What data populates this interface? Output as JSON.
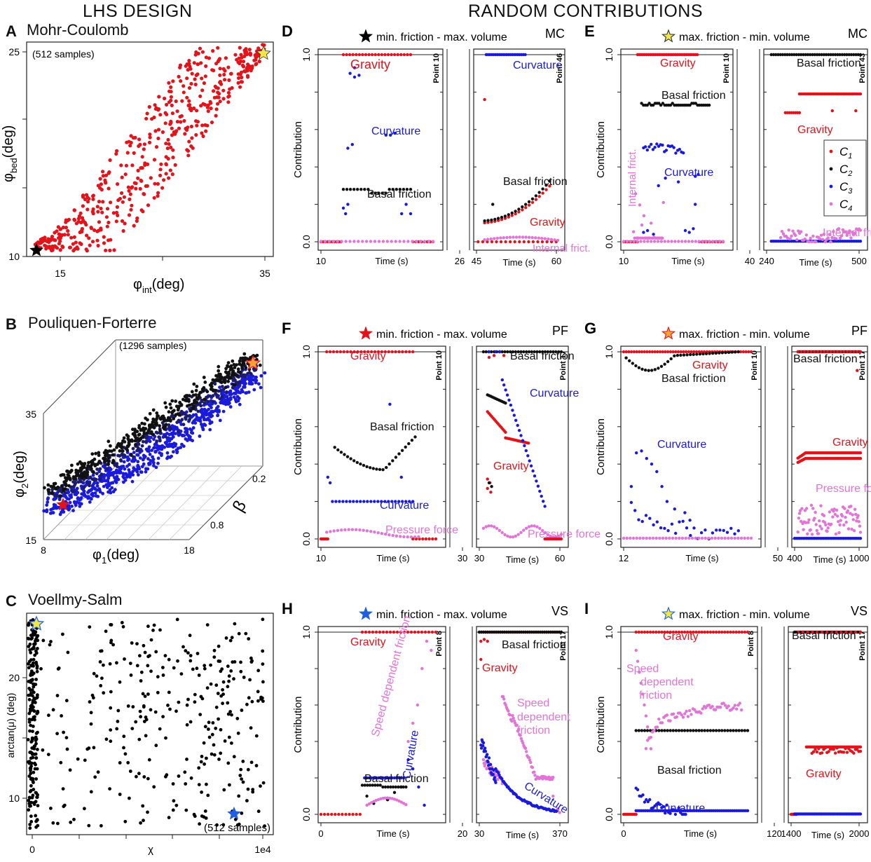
{
  "headers": {
    "left": "LHS DESIGN",
    "right": "RANDOM CONTRIBUTIONS"
  },
  "colors": {
    "gravity": "#e3131b",
    "basal": "#111111",
    "curvature": "#1a1adb",
    "pink": "#e274d8",
    "star_black": "#000000",
    "star_yellow": "#f0e54a",
    "star_red": "#e3131b",
    "star_blue": "#1f5fe0"
  },
  "panelA": {
    "letter": "A",
    "title": "Mohr-Coulomb",
    "samples": "(512 samples)",
    "xlabel": "φint(deg)",
    "xlabel_main": "φ",
    "xlabel_sub": "int",
    "xlabel_unit": "(deg)",
    "ylabel_main": "φ",
    "ylabel_sub": "bed",
    "ylabel_unit": "(deg)",
    "xticks": [
      "15",
      "35"
    ],
    "yticks": [
      "10",
      "25"
    ]
  },
  "panelB": {
    "letter": "B",
    "title": "Pouliquen-Forterre",
    "samples": "(1296 samples)",
    "xlabel_main": "φ",
    "xlabel_sub": "1",
    "xlabel_unit": "(deg)",
    "ylabel_main": "φ",
    "ylabel_sub": "2",
    "ylabel_unit": "(deg)",
    "zlabel": "β",
    "xticks": [
      "8",
      "18"
    ],
    "yticks": [
      "15",
      "35"
    ],
    "zticks": [
      "0.2",
      "0.8"
    ]
  },
  "panelC": {
    "letter": "C",
    "title": "Voellmy-Salm",
    "samples": "(512 samples)",
    "xlabel": "χ",
    "ylabel": "arctan(μ) (deg)",
    "xticks": [
      "0",
      "1e4"
    ],
    "yticks": [
      "10",
      "20"
    ]
  },
  "panels": [
    {
      "id": "D",
      "letter": "D",
      "title": "min. friction - max. volume",
      "model": "MC",
      "star": "black",
      "ylabel": "Contribution",
      "yticks": [
        "0.0",
        "1.0"
      ],
      "left": {
        "point": "Point 10",
        "xticks": [
          "10",
          "26"
        ],
        "xlabel": "Time (s)"
      },
      "right": {
        "point": "Point 46",
        "xticks": [
          "45",
          "60"
        ],
        "xlabel": "Time (s)"
      },
      "labels": [
        "Gravity",
        "Curvature",
        "Basal friction",
        "Curvature",
        "Basal friction",
        "Gravity",
        "Internal frict."
      ]
    },
    {
      "id": "E",
      "letter": "E",
      "title": "max. friction - min. volume",
      "model": "MC",
      "star": "yellow",
      "ylabel": "Contribution",
      "yticks": [
        "0.0",
        "1.0"
      ],
      "left": {
        "point": "Point 10",
        "xticks": [
          "10",
          "40"
        ],
        "xlabel": "Time (s)"
      },
      "right": {
        "point": "Point 43",
        "xticks": [
          "240",
          "500"
        ],
        "xlabel": "Time (s)"
      },
      "labels": [
        "Gravity",
        "Basal friction",
        "Curvature",
        "Internal frict.",
        "Basal friction",
        "Gravity",
        "Internal friction"
      ],
      "legend": [
        {
          "main": "C",
          "sub": "1"
        },
        {
          "main": "C",
          "sub": "2"
        },
        {
          "main": "C",
          "sub": "3"
        },
        {
          "main": "C",
          "sub": "4"
        }
      ]
    },
    {
      "id": "F",
      "letter": "F",
      "title": "min. friction - max. volume",
      "model": "PF",
      "star": "red",
      "ylabel": "Contribution",
      "yticks": [
        "0.0",
        "1.0"
      ],
      "left": {
        "point": "Point 10",
        "xticks": [
          "10",
          "30"
        ],
        "xlabel": "Time (s)"
      },
      "right": {
        "point": "Point 17",
        "xticks": [
          "30",
          "60"
        ],
        "xlabel": "Time (s)"
      },
      "labels": [
        "Gravity",
        "Basal friction",
        "Curvature",
        "Pressure force",
        "Basal friction",
        "Curvature",
        "Gravity",
        "Pressure force"
      ]
    },
    {
      "id": "G",
      "letter": "G",
      "title": "max. friction - min. volume",
      "model": "PF",
      "star": "red-outline",
      "ylabel": "Contribution",
      "yticks": [
        "0.0",
        "1.0"
      ],
      "left": {
        "point": "Point 10",
        "xticks": [
          "12",
          "50"
        ],
        "xlabel": "Time (s)"
      },
      "right": {
        "point": "Point 17",
        "xticks": [
          "400",
          "1000"
        ],
        "xlabel": "Time (s)"
      },
      "labels": [
        "Gravity",
        "Basal friction",
        "Curvature",
        "Basal friction",
        "Gravity",
        "Pressure force"
      ]
    },
    {
      "id": "H",
      "letter": "H",
      "title": "min. friction - max. volume",
      "model": "VS",
      "star": "blue",
      "ylabel": "Contribution",
      "yticks": [
        "0.0",
        "1.0"
      ],
      "left": {
        "point": "Point 8",
        "xticks": [
          "0",
          "20"
        ],
        "xlabel": "Time (s)"
      },
      "right": {
        "point": "Point 17",
        "xticks": [
          "30",
          "370"
        ],
        "xlabel": "Time (s)"
      },
      "labels": [
        "Gravity",
        "Speed dependent friction",
        "Basal friction",
        "Curvature",
        "Basal friction",
        "Gravity",
        "Speed",
        "dependent",
        "friction",
        "Curvature"
      ]
    },
    {
      "id": "I",
      "letter": "I",
      "title": "max. friction - min. volume",
      "model": "VS",
      "star": "blue-outline",
      "ylabel": "Contribution",
      "yticks": [
        "0.0",
        "1.0"
      ],
      "left": {
        "point": "Point 8",
        "xticks": [
          "0",
          "120"
        ],
        "xlabel": "Time (s)"
      },
      "right": {
        "point": "Point 17",
        "xticks": [
          "1400",
          "2000"
        ],
        "xlabel": "Time (s)"
      },
      "labels": [
        "Gravity",
        "Speed",
        "dependent",
        "friction",
        "Basal friction",
        "Curvature",
        "Basal friction",
        "Gravity"
      ]
    }
  ],
  "chart_data": [
    {
      "type": "scatter",
      "title": "Mohr-Coulomb",
      "xlabel": "φint (deg)",
      "ylabel": "φbed (deg)",
      "xlim": [
        11,
        36
      ],
      "ylim": [
        10,
        25
      ],
      "n": 512,
      "note": "samples constrained to φbed ≤ φint, star at (12,10) black and (35,25) yellow"
    },
    {
      "type": "scatter",
      "title": "Pouliquen-Forterre",
      "xlabel": "φ1 (deg)",
      "ylabel": "φ2 (deg)",
      "zlabel": "β",
      "xlim": [
        8,
        18
      ],
      "ylim": [
        15,
        35
      ],
      "zlim": [
        0.2,
        0.8
      ],
      "n": 1296
    },
    {
      "type": "scatter",
      "title": "Voellmy-Salm",
      "xlabel": "χ",
      "ylabel": "arctan(μ) (deg)",
      "xlim": [
        0,
        10000
      ],
      "ylim": [
        8,
        27
      ],
      "n": 512
    },
    {
      "type": "scatter",
      "title": "D MC min. friction - max. volume",
      "ylim": [
        0,
        1
      ],
      "series": [
        {
          "name": "C1 Gravity",
          "x": [
            10,
            12,
            14,
            16,
            18,
            20,
            22,
            24,
            45,
            47,
            50,
            52,
            54,
            56,
            58,
            60
          ],
          "values": [
            1.0,
            1.0,
            1.0,
            1.0,
            1.0,
            1.0,
            1.0,
            1.0,
            0.0,
            0.76,
            0.1,
            0.12,
            0.15,
            0.18,
            0.22,
            0.27
          ]
        },
        {
          "name": "C2 Basal friction",
          "x": [
            14,
            16,
            18,
            20,
            22,
            24,
            49,
            51,
            53,
            55,
            57,
            59
          ],
          "values": [
            0.28,
            0.28,
            0.26,
            0.26,
            0.28,
            0.28,
            0.11,
            0.14,
            0.17,
            0.22,
            0.28,
            0.34
          ]
        },
        {
          "name": "C3 Curvature",
          "x": [
            15,
            16,
            17,
            18,
            19,
            20,
            21,
            50,
            52,
            54,
            56,
            58,
            60
          ],
          "values": [
            0.9,
            0.88,
            0.5,
            0.58,
            0.2,
            0.56,
            0.18,
            1.0,
            1.0,
            1.0,
            1.0,
            1.0,
            1.0
          ]
        },
        {
          "name": "C4 Internal friction",
          "x": [
            10,
            20,
            26,
            45,
            52,
            56,
            60
          ],
          "values": [
            0.0,
            0.0,
            0.0,
            0.0,
            0.01,
            0.02,
            0.01
          ]
        }
      ]
    },
    {
      "type": "scatter",
      "title": "E MC max. friction - min. volume",
      "ylim": [
        0,
        1
      ],
      "series": [
        {
          "name": "C1 Gravity",
          "x": [
            10,
            15,
            20,
            25,
            30,
            240,
            300,
            400,
            500
          ],
          "values": [
            1.0,
            1.0,
            1.0,
            1.0,
            1.0,
            0.69,
            0.79,
            0.79,
            0.7
          ]
        },
        {
          "name": "C2 Basal friction",
          "x": [
            16,
            20,
            25,
            30,
            240,
            300,
            400,
            500
          ],
          "values": [
            0.73,
            0.73,
            0.73,
            0.73,
            1.0,
            1.0,
            1.0,
            1.0
          ]
        },
        {
          "name": "C3 Curvature",
          "x": [
            15,
            18,
            21,
            24,
            27,
            30
          ],
          "values": [
            0.53,
            0.52,
            0.48,
            0.3,
            0.33,
            0.02
          ]
        },
        {
          "name": "C4 Internal friction",
          "x": [
            12,
            16,
            20,
            260,
            300,
            400,
            500
          ],
          "values": [
            0.3,
            0.05,
            0.02,
            0.02,
            0.05,
            0.04,
            0.05
          ]
        }
      ]
    },
    {
      "type": "scatter",
      "title": "F PF min. friction - max. volume",
      "ylim": [
        0,
        1
      ],
      "series": [
        {
          "name": "C1 Gravity",
          "x": [
            10,
            15,
            20,
            25,
            30,
            35,
            40,
            45,
            50,
            55
          ],
          "values": [
            1.0,
            1.0,
            1.0,
            1.0,
            0.0,
            0.6,
            0.54,
            0.54,
            0.52,
            0.5
          ]
        },
        {
          "name": "C2 Basal friction",
          "x": [
            12,
            15,
            18,
            21,
            24,
            34,
            36,
            40,
            50,
            58
          ],
          "values": [
            0.55,
            0.4,
            0.44,
            0.5,
            0.55,
            0.77,
            0.3,
            1.0,
            1.0,
            1.0
          ]
        },
        {
          "name": "C3 Curvature",
          "x": [
            12,
            15,
            18,
            21,
            24,
            38,
            42,
            46,
            50,
            55
          ],
          "values": [
            0.33,
            0.2,
            0.2,
            0.2,
            0.72,
            0.85,
            0.75,
            0.55,
            0.3,
            0.18
          ]
        },
        {
          "name": "C4 Pressure force",
          "x": [
            12,
            18,
            24,
            35,
            45,
            55
          ],
          "values": [
            0.05,
            0.03,
            0.05,
            0.06,
            0.07,
            0.05
          ]
        }
      ]
    },
    {
      "type": "scatter",
      "title": "G PF max. friction - min. volume",
      "ylim": [
        0,
        1
      ],
      "series": [
        {
          "name": "C1 Gravity",
          "x": [
            12,
            20,
            30,
            40,
            50,
            420,
            500,
            700,
            900,
            1000
          ],
          "values": [
            1.0,
            1.0,
            1.0,
            1.0,
            1.0,
            0.42,
            0.46,
            0.46,
            0.46,
            0.43
          ]
        },
        {
          "name": "C2 Basal friction",
          "x": [
            12,
            16,
            20,
            25,
            30,
            40,
            400,
            600,
            800,
            1000
          ],
          "values": [
            0.96,
            0.92,
            0.95,
            0.98,
            0.99,
            1.0,
            1.0,
            1.0,
            1.0,
            0.9
          ]
        },
        {
          "name": "C3 Curvature",
          "x": [
            13,
            16,
            20,
            25,
            30,
            40,
            48
          ],
          "values": [
            0.28,
            0.47,
            0.25,
            0.18,
            0.12,
            0.04,
            0.02
          ]
        },
        {
          "name": "C4 Pressure force",
          "x": [
            12,
            50,
            420,
            600,
            800,
            1000
          ],
          "values": [
            0.01,
            0.01,
            0.12,
            0.1,
            0.11,
            0.09
          ]
        }
      ]
    },
    {
      "type": "scatter",
      "title": "H VS min. friction - max. volume",
      "ylim": [
        0,
        1
      ],
      "series": [
        {
          "name": "C1 Gravity",
          "x": [
            0,
            4,
            8,
            12,
            16,
            20,
            30,
            50,
            150,
            370
          ],
          "values": [
            0.0,
            0.0,
            1.0,
            1.0,
            1.0,
            1.0,
            0.95,
            1.0,
            1.0,
            1.0
          ]
        },
        {
          "name": "C2 Basal friction",
          "x": [
            8,
            10,
            12,
            14,
            16,
            30,
            100,
            370
          ],
          "values": [
            0.1,
            0.12,
            0.08,
            0.12,
            0.17,
            1.0,
            1.0,
            1.0
          ]
        },
        {
          "name": "C3 Curvature",
          "x": [
            8,
            10,
            12,
            14,
            16,
            18,
            30,
            60,
            100,
            200,
            300,
            370
          ],
          "values": [
            0.2,
            0.2,
            0.2,
            0.2,
            0.2,
            0.1,
            0.4,
            0.25,
            0.15,
            0.08,
            0.05,
            0.03
          ]
        },
        {
          "name": "C4 Speed dependent friction",
          "x": [
            8,
            10,
            12,
            14,
            16,
            18,
            30,
            60,
            100,
            200,
            300,
            370
          ],
          "values": [
            0.05,
            0.06,
            0.08,
            0.2,
            0.55,
            0.9,
            0.2,
            0.6,
            0.55,
            0.25,
            0.2,
            0.18
          ]
        }
      ]
    },
    {
      "type": "scatter",
      "title": "I VS max. friction - min. volume",
      "ylim": [
        0,
        1
      ],
      "series": [
        {
          "name": "C1 Gravity",
          "x": [
            0,
            20,
            60,
            100,
            120,
            1400,
            1600,
            1800,
            2000
          ],
          "values": [
            1.0,
            1.0,
            1.0,
            1.0,
            1.0,
            0.0,
            0.37,
            0.35,
            0.37
          ]
        },
        {
          "name": "C2 Basal friction",
          "x": [
            10,
            30,
            60,
            100,
            120,
            1500,
            1700,
            2000
          ],
          "values": [
            0.46,
            0.46,
            0.46,
            0.46,
            0.46,
            1.0,
            1.0,
            1.0
          ]
        },
        {
          "name": "C3 Curvature",
          "x": [
            10,
            20,
            40,
            60,
            100,
            120
          ],
          "values": [
            0.17,
            0.08,
            0.05,
            0.03,
            0.02,
            0.02
          ]
        },
        {
          "name": "C4 Speed dependent friction",
          "x": [
            10,
            20,
            30,
            50,
            80,
            120
          ],
          "values": [
            0.85,
            0.38,
            0.5,
            0.58,
            0.57,
            0.56
          ]
        }
      ]
    }
  ]
}
